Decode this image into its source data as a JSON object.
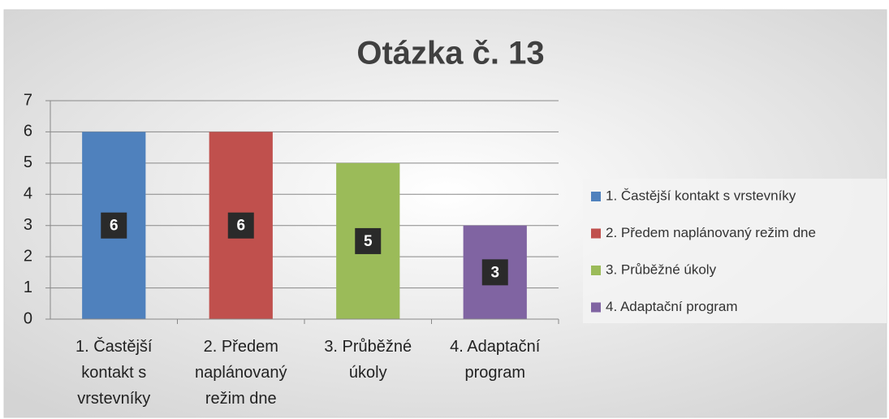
{
  "chart_data": {
    "type": "bar",
    "title": "Otázka č. 13",
    "categories": [
      "1. Častější kontakt s vrstevníky",
      "2. Předem naplánovaný režim dne",
      "3. Průběžné úkoly",
      "4. Adaptační program"
    ],
    "values": [
      6,
      6,
      5,
      3
    ],
    "colors": [
      "#4f81bd",
      "#c0504d",
      "#9bbb59",
      "#8064a2"
    ],
    "ylim": [
      0,
      7
    ],
    "yticks": [
      0,
      1,
      2,
      3,
      4,
      5,
      6,
      7
    ],
    "grid": true,
    "legend": "right"
  }
}
